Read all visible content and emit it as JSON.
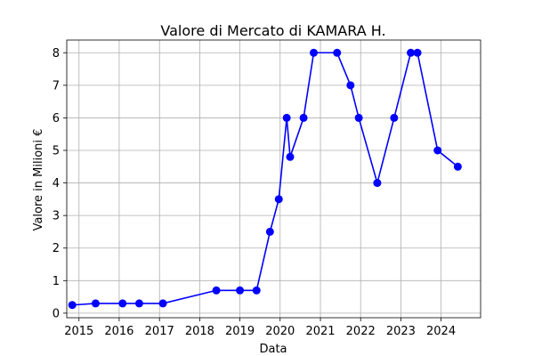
{
  "chart_data": {
    "type": "line",
    "title": "Valore di Mercato di KAMARA H.",
    "xlabel": "Data",
    "ylabel": "Valore in Milioni €",
    "x_ticks": [
      "2015",
      "2016",
      "2017",
      "2018",
      "2019",
      "2020",
      "2021",
      "2022",
      "2023",
      "2024"
    ],
    "y_ticks": [
      "0",
      "1",
      "2",
      "3",
      "4",
      "5",
      "6",
      "7",
      "8"
    ],
    "xlim": [
      "2014-09-12",
      "2024-12-25"
    ],
    "ylim": [
      -0.14,
      8.39
    ],
    "grid": true,
    "line_color": "#0000ff",
    "marker": "circle",
    "series": [
      {
        "x": [
          "2014-11-01",
          "2015-06-01",
          "2016-02-01",
          "2016-07-01",
          "2017-02-01",
          "2018-06-01",
          "2019-01-01",
          "2019-06-01",
          "2019-10-01",
          "2019-12-20",
          "2020-03-01",
          "2020-04-01",
          "2020-08-01",
          "2020-11-01",
          "2021-06-01",
          "2021-10-01",
          "2021-12-15",
          "2022-06-01",
          "2022-11-01",
          "2023-04-01",
          "2023-06-01",
          "2023-12-01",
          "2024-06-01"
        ],
        "y": [
          0.25,
          0.3,
          0.3,
          0.3,
          0.3,
          0.7,
          0.7,
          0.7,
          2.5,
          3.5,
          6,
          4.8,
          6,
          8,
          8,
          7,
          6,
          4,
          6,
          8,
          8,
          5,
          4.5
        ]
      }
    ]
  }
}
